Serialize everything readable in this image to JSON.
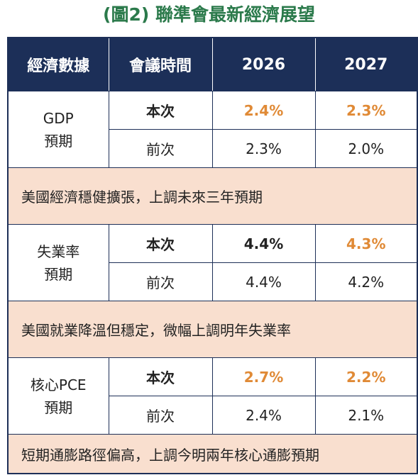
{
  "title": "(圖2) 聯準會最新經濟展望",
  "header": [
    "經濟數據",
    "會議時間",
    "2026",
    "2027"
  ],
  "colors": {
    "title": "#2b7a4b",
    "header_bg": "#1c2f58",
    "note_bg": "#f9dfcf",
    "highlight": "#e08a36"
  },
  "groups": [
    {
      "label_line1": "GDP",
      "label_line2": "預期",
      "current": {
        "label": "本次",
        "y2026": "2.4%",
        "y2027": "2.3%"
      },
      "previous": {
        "label": "前次",
        "y2026": "2.3%",
        "y2027": "2.0%"
      },
      "note": "美國經濟穩健擴張，上調未來三年預期"
    },
    {
      "label_line1": "失業率",
      "label_line2": "預期",
      "current": {
        "label": "本次",
        "y2026": "4.4%",
        "y2027": "4.3%"
      },
      "previous": {
        "label": "前次",
        "y2026": "4.4%",
        "y2027": "4.2%"
      },
      "note": "美國就業降溫但穩定，微幅上調明年失業率"
    },
    {
      "label_line1": "核心PCE",
      "label_line2": "預期",
      "current": {
        "label": "本次",
        "y2026": "2.7%",
        "y2027": "2.2%"
      },
      "previous": {
        "label": "前次",
        "y2026": "2.4%",
        "y2027": "2.1%"
      },
      "note": "短期通膨路徑偏高，上調今明兩年核心通膨預期"
    }
  ]
}
